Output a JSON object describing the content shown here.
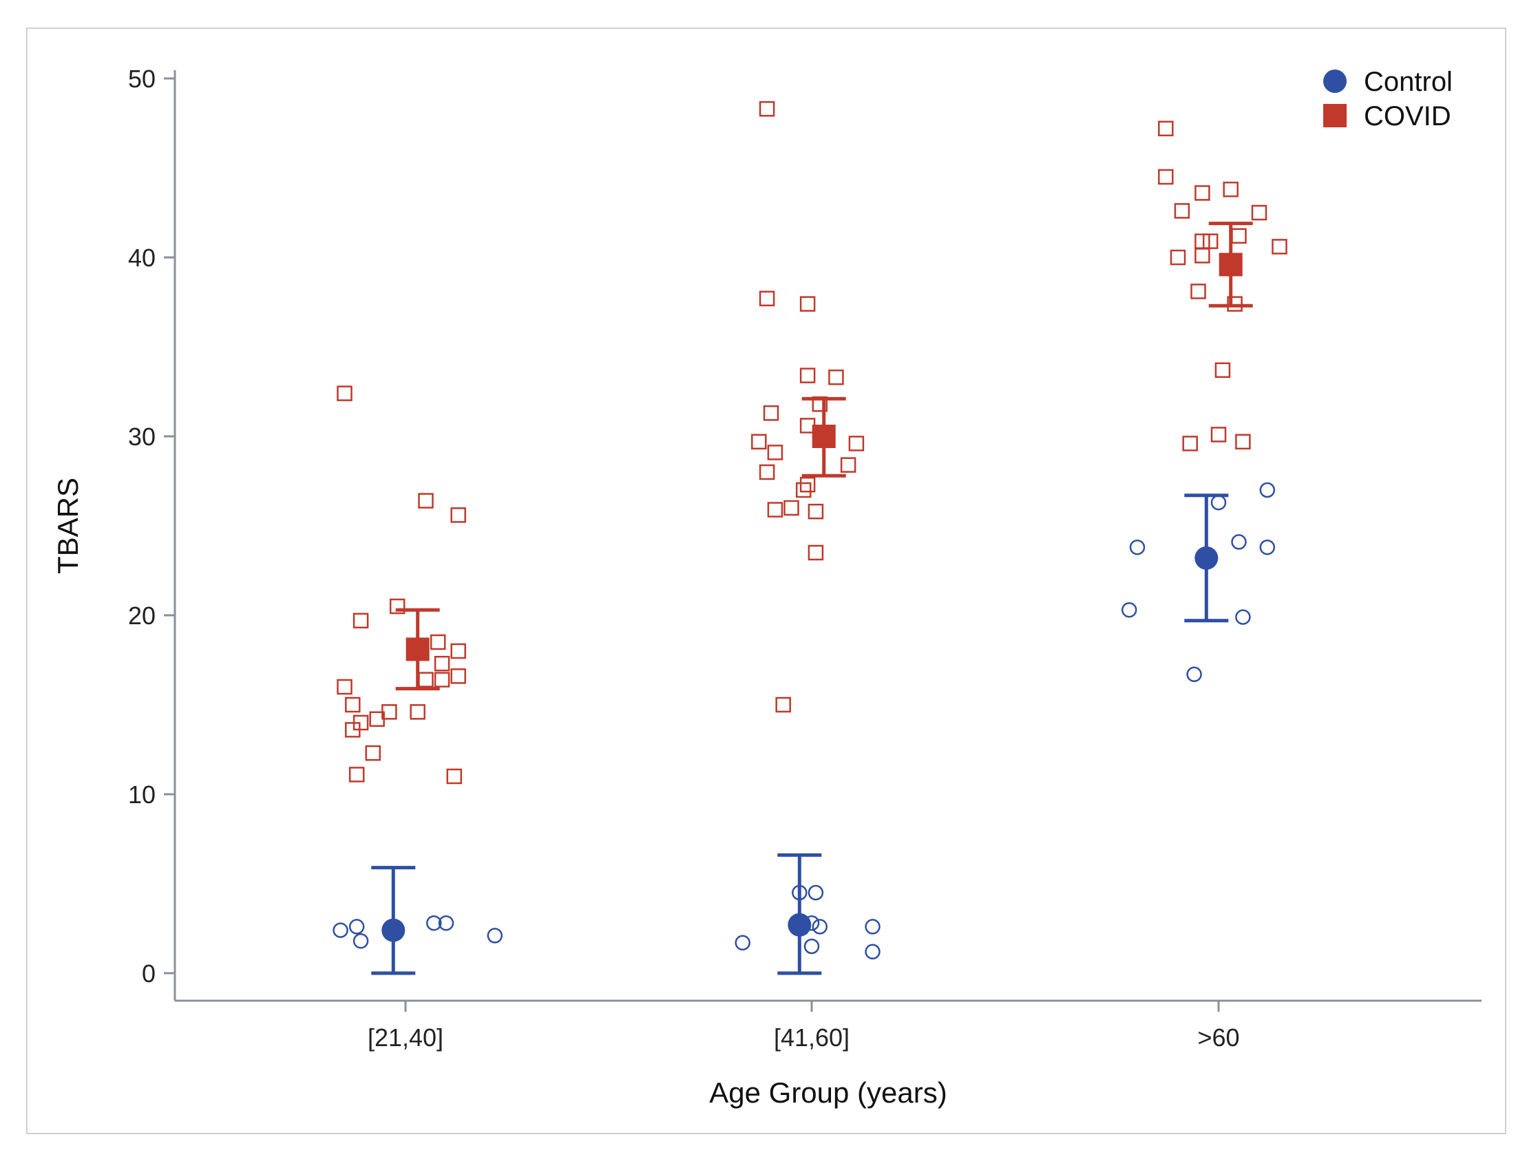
{
  "chart_data": {
    "type": "scatter",
    "title": "",
    "xlabel": "Age Group (years)",
    "ylabel": "TBARS",
    "categories": [
      "[21,40]",
      "[41,60]",
      ">60"
    ],
    "ylim": [
      0,
      50
    ],
    "yticks": [
      0,
      10,
      20,
      30,
      40,
      50
    ],
    "legend_position": "top-right",
    "series": [
      {
        "name": "Control",
        "color": "#2e4fa3",
        "marker": "circle",
        "points": [
          {
            "category": "[21,40]",
            "jitter": -0.16,
            "value": 2.4
          },
          {
            "category": "[21,40]",
            "jitter": -0.12,
            "value": 2.6
          },
          {
            "category": "[21,40]",
            "jitter": -0.11,
            "value": 1.8
          },
          {
            "category": "[21,40]",
            "jitter": 0.07,
            "value": 2.8
          },
          {
            "category": "[21,40]",
            "jitter": 0.1,
            "value": 2.8
          },
          {
            "category": "[21,40]",
            "jitter": 0.22,
            "value": 2.1
          },
          {
            "category": "[41,60]",
            "jitter": -0.17,
            "value": 1.7
          },
          {
            "category": "[41,60]",
            "jitter": -0.03,
            "value": 4.5
          },
          {
            "category": "[41,60]",
            "jitter": 0.01,
            "value": 4.5
          },
          {
            "category": "[41,60]",
            "jitter": 0.0,
            "value": 2.8
          },
          {
            "category": "[41,60]",
            "jitter": 0.02,
            "value": 2.6
          },
          {
            "category": "[41,60]",
            "jitter": 0.0,
            "value": 1.5
          },
          {
            "category": "[41,60]",
            "jitter": 0.15,
            "value": 2.6
          },
          {
            "category": "[41,60]",
            "jitter": 0.15,
            "value": 1.2
          },
          {
            "category": ">60",
            "jitter": -0.22,
            "value": 20.3
          },
          {
            "category": ">60",
            "jitter": -0.2,
            "value": 23.8
          },
          {
            "category": ">60",
            "jitter": -0.06,
            "value": 16.7
          },
          {
            "category": ">60",
            "jitter": 0.0,
            "value": 26.3
          },
          {
            "category": ">60",
            "jitter": 0.05,
            "value": 24.1
          },
          {
            "category": ">60",
            "jitter": 0.06,
            "value": 19.9
          },
          {
            "category": ">60",
            "jitter": 0.12,
            "value": 23.8
          },
          {
            "category": ">60",
            "jitter": 0.12,
            "value": 27.0
          }
        ],
        "means": [
          {
            "category": "[21,40]",
            "offset": -0.03,
            "mean": 2.4,
            "lower": 0.0,
            "upper": 5.9
          },
          {
            "category": "[41,60]",
            "offset": -0.03,
            "mean": 2.7,
            "lower": 0.0,
            "upper": 6.6
          },
          {
            "category": ">60",
            "offset": -0.03,
            "mean": 23.2,
            "lower": 19.7,
            "upper": 26.7
          }
        ]
      },
      {
        "name": "COVID",
        "color": "#c0392b",
        "marker": "square",
        "points": [
          {
            "category": "[21,40]",
            "jitter": -0.15,
            "value": 32.4
          },
          {
            "category": "[21,40]",
            "jitter": -0.11,
            "value": 19.7
          },
          {
            "category": "[21,40]",
            "jitter": -0.02,
            "value": 20.5
          },
          {
            "category": "[21,40]",
            "jitter": 0.05,
            "value": 26.4
          },
          {
            "category": "[21,40]",
            "jitter": 0.13,
            "value": 25.6
          },
          {
            "category": "[21,40]",
            "jitter": 0.08,
            "value": 18.5
          },
          {
            "category": "[21,40]",
            "jitter": 0.13,
            "value": 18.0
          },
          {
            "category": "[21,40]",
            "jitter": 0.09,
            "value": 17.3
          },
          {
            "category": "[21,40]",
            "jitter": 0.05,
            "value": 16.4
          },
          {
            "category": "[21,40]",
            "jitter": 0.09,
            "value": 16.4
          },
          {
            "category": "[21,40]",
            "jitter": 0.13,
            "value": 16.6
          },
          {
            "category": "[21,40]",
            "jitter": -0.15,
            "value": 16.0
          },
          {
            "category": "[21,40]",
            "jitter": -0.13,
            "value": 15.0
          },
          {
            "category": "[21,40]",
            "jitter": -0.04,
            "value": 14.6
          },
          {
            "category": "[21,40]",
            "jitter": 0.03,
            "value": 14.6
          },
          {
            "category": "[21,40]",
            "jitter": -0.07,
            "value": 14.2
          },
          {
            "category": "[21,40]",
            "jitter": -0.11,
            "value": 14.0
          },
          {
            "category": "[21,40]",
            "jitter": -0.13,
            "value": 13.6
          },
          {
            "category": "[21,40]",
            "jitter": -0.08,
            "value": 12.3
          },
          {
            "category": "[21,40]",
            "jitter": -0.12,
            "value": 11.1
          },
          {
            "category": "[21,40]",
            "jitter": 0.12,
            "value": 11.0
          },
          {
            "category": "[41,60]",
            "jitter": -0.11,
            "value": 48.3
          },
          {
            "category": "[41,60]",
            "jitter": -0.11,
            "value": 37.7
          },
          {
            "category": "[41,60]",
            "jitter": -0.01,
            "value": 37.4
          },
          {
            "category": "[41,60]",
            "jitter": -0.01,
            "value": 33.4
          },
          {
            "category": "[41,60]",
            "jitter": 0.06,
            "value": 33.3
          },
          {
            "category": "[41,60]",
            "jitter": -0.1,
            "value": 31.3
          },
          {
            "category": "[41,60]",
            "jitter": 0.02,
            "value": 31.8
          },
          {
            "category": "[41,60]",
            "jitter": -0.01,
            "value": 30.6
          },
          {
            "category": "[41,60]",
            "jitter": -0.13,
            "value": 29.7
          },
          {
            "category": "[41,60]",
            "jitter": -0.09,
            "value": 29.1
          },
          {
            "category": "[41,60]",
            "jitter": 0.11,
            "value": 29.6
          },
          {
            "category": "[41,60]",
            "jitter": 0.09,
            "value": 28.4
          },
          {
            "category": "[41,60]",
            "jitter": -0.11,
            "value": 28.0
          },
          {
            "category": "[41,60]",
            "jitter": -0.01,
            "value": 27.3
          },
          {
            "category": "[41,60]",
            "jitter": -0.02,
            "value": 27.0
          },
          {
            "category": "[41,60]",
            "jitter": -0.09,
            "value": 25.9
          },
          {
            "category": "[41,60]",
            "jitter": -0.05,
            "value": 26.0
          },
          {
            "category": "[41,60]",
            "jitter": 0.01,
            "value": 25.8
          },
          {
            "category": "[41,60]",
            "jitter": 0.01,
            "value": 23.5
          },
          {
            "category": "[41,60]",
            "jitter": -0.07,
            "value": 15.0
          },
          {
            "category": ">60",
            "jitter": -0.13,
            "value": 47.2
          },
          {
            "category": ">60",
            "jitter": -0.13,
            "value": 44.5
          },
          {
            "category": ">60",
            "jitter": -0.04,
            "value": 43.6
          },
          {
            "category": ">60",
            "jitter": 0.03,
            "value": 43.8
          },
          {
            "category": ">60",
            "jitter": -0.09,
            "value": 42.6
          },
          {
            "category": ">60",
            "jitter": 0.1,
            "value": 42.5
          },
          {
            "category": ">60",
            "jitter": 0.05,
            "value": 41.2
          },
          {
            "category": ">60",
            "jitter": -0.04,
            "value": 40.9
          },
          {
            "category": ">60",
            "jitter": -0.02,
            "value": 40.9
          },
          {
            "category": ">60",
            "jitter": 0.15,
            "value": 40.6
          },
          {
            "category": ">60",
            "jitter": -0.1,
            "value": 40.0
          },
          {
            "category": ">60",
            "jitter": -0.04,
            "value": 40.1
          },
          {
            "category": ">60",
            "jitter": -0.05,
            "value": 38.1
          },
          {
            "category": ">60",
            "jitter": 0.04,
            "value": 37.4
          },
          {
            "category": ">60",
            "jitter": 0.01,
            "value": 33.7
          },
          {
            "category": ">60",
            "jitter": -0.07,
            "value": 29.6
          },
          {
            "category": ">60",
            "jitter": 0.0,
            "value": 30.1
          },
          {
            "category": ">60",
            "jitter": 0.06,
            "value": 29.7
          }
        ],
        "means": [
          {
            "category": "[21,40]",
            "offset": 0.03,
            "mean": 18.1,
            "lower": 15.9,
            "upper": 20.3
          },
          {
            "category": "[41,60]",
            "offset": 0.03,
            "mean": 30.0,
            "lower": 27.8,
            "upper": 32.1
          },
          {
            "category": ">60",
            "offset": 0.03,
            "mean": 39.6,
            "lower": 37.3,
            "upper": 41.9
          }
        ]
      }
    ]
  }
}
